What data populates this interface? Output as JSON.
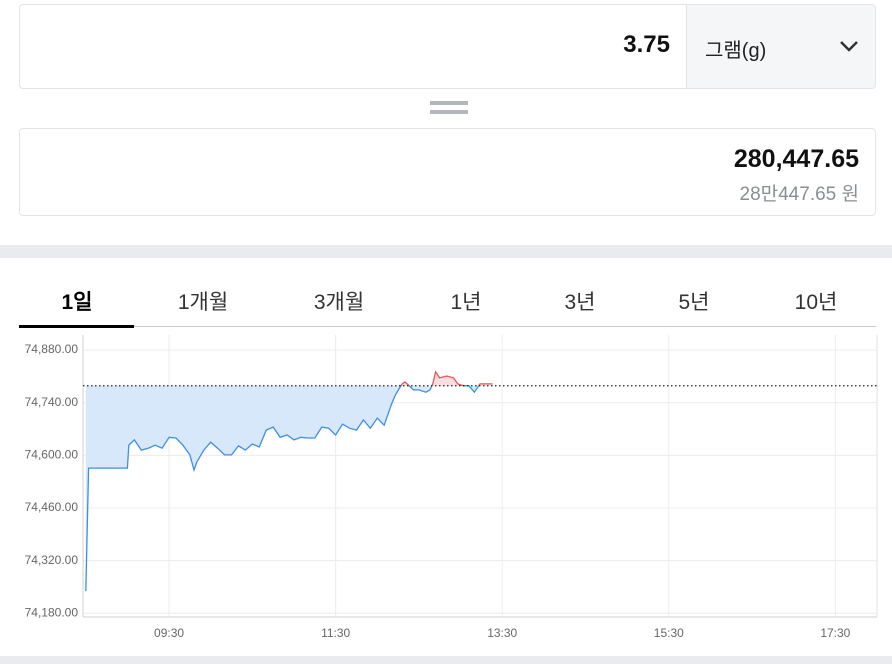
{
  "converter": {
    "amount": "3.75",
    "unit": "그램(g)",
    "result": "280,447.65",
    "result_korean": "28만447.65 원"
  },
  "tabs": [
    "1일",
    "1개월",
    "3개월",
    "1년",
    "3년",
    "5년",
    "10년"
  ],
  "active_tab": 0,
  "chart_data": {
    "type": "line",
    "x": [
      510,
      512,
      540,
      541,
      545,
      550,
      555,
      560,
      565,
      570,
      575,
      580,
      585,
      588,
      590,
      595,
      600,
      605,
      610,
      615,
      620,
      625,
      630,
      635,
      640,
      645,
      650,
      655,
      660,
      665,
      670,
      675,
      680,
      685,
      690,
      695,
      700,
      705,
      710,
      715,
      720,
      725,
      730,
      733,
      736,
      738,
      740,
      743,
      746,
      750,
      755,
      758,
      760,
      762,
      765,
      770,
      775,
      778,
      782,
      786,
      790,
      794,
      800,
      803
    ],
    "series": [
      {
        "color": "#3d8ee6",
        "color_above": "#e8535a",
        "fill": "#d8e8fb",
        "fill_above": "#fbdfe0",
        "values": [
          74239,
          74566,
          74566,
          74627,
          74641,
          74614,
          74619,
          74627,
          74619,
          74648,
          74646,
          74627,
          74601,
          74561,
          74582,
          74614,
          74635,
          74619,
          74601,
          74601,
          74625,
          74614,
          74630,
          74622,
          74667,
          74675,
          74648,
          74654,
          74641,
          74648,
          74646,
          74646,
          74675,
          74672,
          74654,
          74683,
          74672,
          74667,
          74694,
          74672,
          74699,
          74680,
          74734,
          74760,
          74779,
          74790,
          74795,
          74785,
          74774,
          74774,
          74768,
          74774,
          74790,
          74822,
          74806,
          74811,
          74806,
          74790,
          74785,
          74785,
          74768,
          74790,
          74790,
          74790
        ]
      }
    ],
    "reference": 74785,
    "xlim": [
      508,
      1080
    ],
    "xticks": [
      {
        "value": 570,
        "label": "09:30"
      },
      {
        "value": 690,
        "label": "11:30"
      },
      {
        "value": 810,
        "label": "13:30"
      },
      {
        "value": 930,
        "label": "15:30"
      },
      {
        "value": 1050,
        "label": "17:30"
      }
    ],
    "ylim": [
      74170,
      74920
    ],
    "yticks": [
      {
        "value": 74180,
        "label": "74,180.00"
      },
      {
        "value": 74320,
        "label": "74,320.00"
      },
      {
        "value": 74460,
        "label": "74,460.00"
      },
      {
        "value": 74600,
        "label": "74,600.00"
      },
      {
        "value": 74740,
        "label": "74,740.00"
      },
      {
        "value": 74880,
        "label": "74,880.00"
      }
    ],
    "grid": true
  }
}
